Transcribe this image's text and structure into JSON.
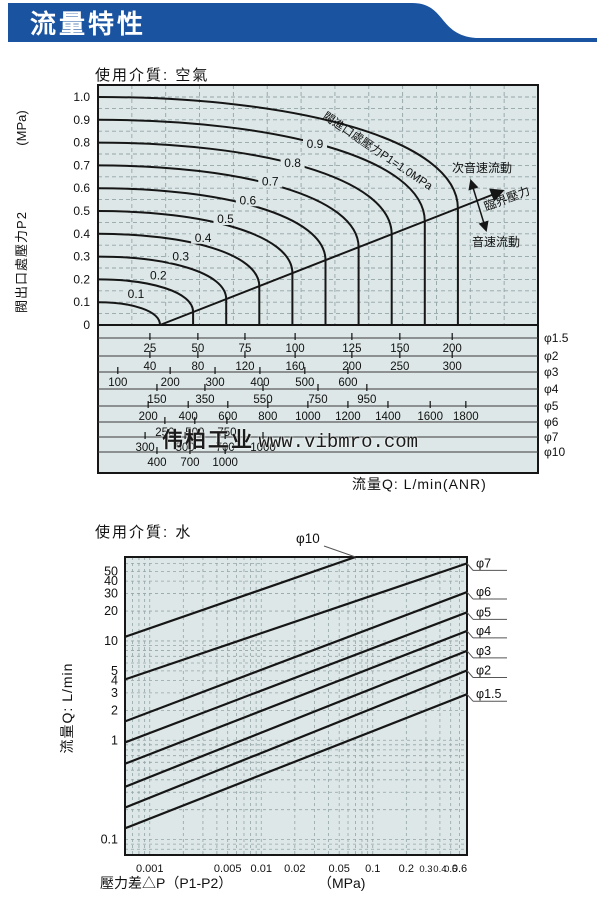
{
  "header": {
    "title": "流量特性"
  },
  "watermark": {
    "company": "伟柏工业",
    "url": "www.vibmro.com"
  },
  "colors": {
    "banner_blue": "#1a53a0",
    "plot_bg": "#dde7e7",
    "grid": "#93a5a8",
    "line": "#161616",
    "text": "#111111"
  },
  "chart_data": [
    {
      "id": "air",
      "type": "line",
      "title": "使用介質: 空氣",
      "ylabel": "閥出口處壓力P2",
      "ylabel_unit": "(MPa)",
      "xlabel": "流量Q: L/min(ANR)",
      "ylim": [
        0,
        1.05
      ],
      "grid": "dashed",
      "y_tick_labels": [
        "0",
        "0.1",
        "0.2",
        "0.3",
        "0.4",
        "0.5",
        "0.6",
        "0.7",
        "0.8",
        "0.9",
        "1.0"
      ],
      "p1_curves": [
        0.1,
        0.2,
        0.3,
        0.4,
        0.5,
        0.6,
        0.7,
        0.8,
        0.9,
        1.0
      ],
      "curve_labels": [
        "0.1",
        "0.2",
        "0.3",
        "0.4",
        "0.5",
        "0.6",
        "0.7",
        "0.8",
        "0.9"
      ],
      "inlet_annotation": "閥進口處壓力P1=1.0MPa",
      "annotation_subsonic": "次音速流動",
      "annotation_critical": "臨界壓力",
      "annotation_sonic": "音速流動",
      "flow_scales": [
        {
          "phi": "φ1.5",
          "y": 338,
          "values": [
            "25",
            "50",
            "75",
            "100",
            "125",
            "150",
            "200"
          ],
          "fracs": [
            0.118,
            0.227,
            0.334,
            0.448,
            0.577,
            0.686,
            0.805
          ]
        },
        {
          "phi": "φ2",
          "y": 356,
          "values": [
            "40",
            "80",
            "120",
            "160",
            "200",
            "250",
            "300"
          ],
          "fracs": [
            0.118,
            0.227,
            0.334,
            0.448,
            0.577,
            0.686,
            0.805
          ]
        },
        {
          "phi": "φ3",
          "y": 372,
          "values": [
            "100",
            "200",
            "300",
            "400",
            "500",
            "600"
          ],
          "fracs": [
            0.045,
            0.164,
            0.266,
            0.368,
            0.47,
            0.568
          ]
        },
        {
          "phi": "φ4",
          "y": 389,
          "values": [
            "150",
            "350",
            "550",
            "750",
            "950"
          ],
          "fracs": [
            0.134,
            0.243,
            0.375,
            0.5,
            0.611
          ]
        },
        {
          "phi": "φ5",
          "y": 406,
          "values": [
            "200",
            "400",
            "600",
            "800",
            "1000",
            "1200",
            "1400",
            "1600",
            "1800"
          ],
          "fracs": [
            0.114,
            0.205,
            0.295,
            0.386,
            0.477,
            0.568,
            0.659,
            0.755,
            0.836
          ]
        },
        {
          "phi": "φ6",
          "y": 422,
          "values": [
            "250",
            "500",
            "750"
          ],
          "fracs": [
            0.152,
            0.22,
            0.293
          ]
        },
        {
          "phi": "φ7",
          "y": 437,
          "values": [
            "300",
            "500",
            "700",
            "1000"
          ],
          "fracs": [
            0.107,
            0.198,
            0.289,
            0.375
          ]
        },
        {
          "phi": "φ10",
          "y": 452,
          "values": [
            "400",
            "700",
            "1000"
          ],
          "fracs": [
            0.134,
            0.209,
            0.289
          ]
        }
      ]
    },
    {
      "id": "water",
      "type": "line",
      "title": "使用介質: 水",
      "ylabel": "流量Q: L/min",
      "xlabel": "壓力差△P（P1-P2）",
      "xlabel_unit": "（MPa)",
      "xlim": [
        0.0006,
        0.7
      ],
      "ylim": [
        0.07,
        70
      ],
      "grid": "log-log dashed",
      "x_ticks": [
        0.001,
        0.005,
        0.01,
        0.02,
        0.05,
        0.1,
        0.2,
        0.3,
        0.4,
        0.5,
        0.6
      ],
      "x_tick_labels": [
        "0.001",
        "0.005",
        "0.01",
        "0.02",
        "0.05",
        "0.1",
        "0.2",
        "0.3",
        "0.4",
        "0.5",
        "0.6"
      ],
      "y_tick_values": [
        50,
        40,
        30,
        20,
        10,
        5,
        4,
        3,
        2,
        1,
        0.1
      ],
      "y_tick_labels": [
        "50",
        "40",
        "30",
        "20",
        "10",
        "5",
        "4",
        "3",
        "2",
        "1",
        "0.1"
      ],
      "top_line_label": "φ10",
      "series": [
        {
          "name": "φ10",
          "points": [
            [
              0.0006,
              11
            ],
            [
              0.07,
              70
            ]
          ]
        },
        {
          "name": "φ7",
          "points": [
            [
              0.0006,
              4.1
            ],
            [
              0.75,
              62
            ]
          ]
        },
        {
          "name": "φ6",
          "points": [
            [
              0.0006,
              1.55
            ],
            [
              0.75,
              32
            ]
          ]
        },
        {
          "name": "φ5",
          "points": [
            [
              0.0006,
              0.95
            ],
            [
              0.75,
              20
            ]
          ]
        },
        {
          "name": "φ4",
          "points": [
            [
              0.0006,
              0.58
            ],
            [
              0.75,
              13
            ]
          ]
        },
        {
          "name": "φ3",
          "points": [
            [
              0.0006,
              0.34
            ],
            [
              0.75,
              8.2
            ]
          ]
        },
        {
          "name": "φ2",
          "points": [
            [
              0.0006,
              0.21
            ],
            [
              0.75,
              5.2
            ]
          ]
        },
        {
          "name": "φ1.5",
          "points": [
            [
              0.0006,
              0.13
            ],
            [
              0.75,
              3.0
            ]
          ]
        }
      ]
    }
  ]
}
